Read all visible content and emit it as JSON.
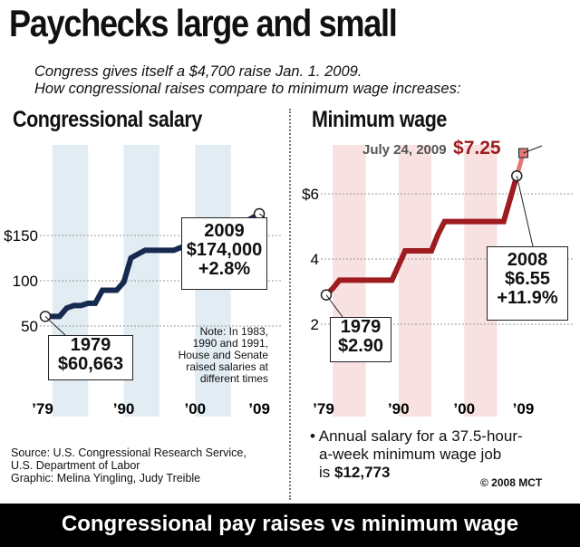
{
  "header": {
    "title": "Paychecks large and small",
    "subtitle_line1": "Congress gives itself a $4,700 raise Jan. 1. 2009.",
    "subtitle_line2": "How congressional raises compare to minimum wage increases:"
  },
  "colors": {
    "congress_line": "#16294f",
    "minwage_line": "#9e1b1f",
    "minwage_projected": "#e07a7a",
    "congress_band": "#e2ecf3",
    "minwage_band": "#f8e1e1"
  },
  "chart_data": [
    {
      "type": "line",
      "title": "Congressional salary",
      "yticks": [
        "$150",
        "100",
        "50"
      ],
      "xticks": [
        "’79",
        "’90",
        "’00",
        "’09"
      ],
      "ylim": [
        40,
        190
      ],
      "grid": true,
      "series": [
        {
          "x": [
            1979,
            1980,
            1981,
            1982,
            1983,
            1984,
            1985,
            1986,
            1987,
            1988,
            1989,
            1990,
            1991,
            1992,
            1993,
            1994,
            1995,
            1996,
            1997,
            1998,
            1999,
            2000,
            2001,
            2002,
            2003,
            2004,
            2005,
            2006,
            2007,
            2008,
            2009
          ],
          "y": [
            60.663,
            60.663,
            60.663,
            69.8,
            72.6,
            72.6,
            75.1,
            75.1,
            89.5,
            89.5,
            89.5,
            98.4,
            125.1,
            129.5,
            133.6,
            133.6,
            133.6,
            133.6,
            133.6,
            136.7,
            136.7,
            141.3,
            145.1,
            150.0,
            154.7,
            158.1,
            162.1,
            165.2,
            165.2,
            169.3,
            174.0
          ]
        }
      ],
      "annotations": {
        "start": {
          "year": "1979",
          "value": "$60,663"
        },
        "end": {
          "year": "2009",
          "value": "$174,000",
          "change": "+2.8%"
        },
        "note": [
          "Note: In 1983,",
          "1990 and 1991,",
          "House and Senate",
          "raised salaries at",
          "different times"
        ]
      }
    },
    {
      "type": "line",
      "title": "Minimum wage",
      "yticks": [
        "$6",
        "4",
        "2"
      ],
      "xticks": [
        "’79",
        "’90",
        "’00",
        "’09"
      ],
      "ylim": [
        1.2,
        8.0
      ],
      "grid": true,
      "series": [
        {
          "x": [
            1979,
            1980,
            1981,
            1982,
            1983,
            1984,
            1985,
            1986,
            1987,
            1988,
            1989,
            1990,
            1991,
            1992,
            1993,
            1994,
            1995,
            1996,
            1997,
            1998,
            1999,
            2000,
            2001,
            2002,
            2003,
            2004,
            2005,
            2006,
            2007,
            2008
          ],
          "y": [
            2.9,
            3.1,
            3.35,
            3.35,
            3.35,
            3.35,
            3.35,
            3.35,
            3.35,
            3.35,
            3.35,
            3.8,
            4.25,
            4.25,
            4.25,
            4.25,
            4.25,
            4.75,
            5.15,
            5.15,
            5.15,
            5.15,
            5.15,
            5.15,
            5.15,
            5.15,
            5.15,
            5.15,
            5.85,
            6.55
          ]
        },
        {
          "x": [
            2008,
            2009
          ],
          "y": [
            6.55,
            7.25
          ]
        }
      ],
      "annotations": {
        "start": {
          "year": "1979",
          "value": "$2.90"
        },
        "end": {
          "year": "2008",
          "value": "$6.55",
          "change": "+11.9%"
        },
        "projected": {
          "date": "July 24, 2009",
          "value": "$7.25"
        }
      }
    }
  ],
  "footer": {
    "source_line1": "Source: U.S. Congressional Research Service,",
    "source_line2": "U.S. Department of Labor",
    "source_line3": "Graphic: Melina Yingling, Judy Treible",
    "annual_line1": "• Annual salary for a 37.5-hour-",
    "annual_line2": "a-week minimum wage job",
    "annual_prefix": "is",
    "annual_value": "$12,773",
    "copyright": "© 2008 MCT",
    "caption": "Congressional pay raises vs minimum wage"
  }
}
